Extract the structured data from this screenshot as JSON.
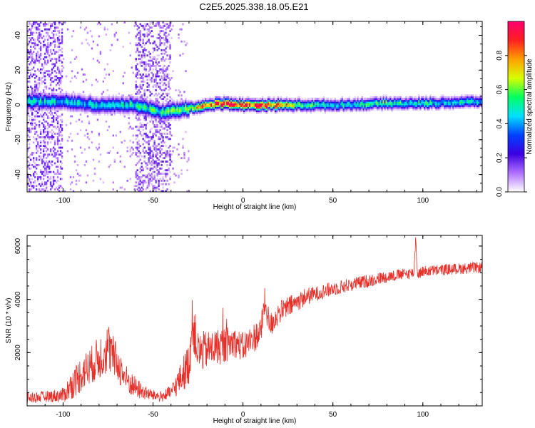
{
  "title": "C2E5.2025.338.18.05.E21",
  "chart_data": [
    {
      "type": "heatmap",
      "xlabel": "Height of straight line (km)",
      "ylabel": "Frequency (Hz)",
      "xlim": [
        -120,
        133
      ],
      "ylim": [
        -50,
        48
      ],
      "xticks": [
        -100,
        -50,
        0,
        50,
        100
      ],
      "yticks": [
        -40,
        -20,
        0,
        20,
        40
      ],
      "colorbar": {
        "label": "Normalized spectral amplitude",
        "ticks": [
          0.0,
          0.2,
          0.4,
          0.6,
          0.8
        ],
        "tick_labels": [
          "0.0",
          "0.2",
          "0.4",
          "0.6",
          "0.8"
        ],
        "range": [
          0,
          1
        ],
        "colors": [
          "#ffffff",
          "#b070ff",
          "#3c00e0",
          "#0040ff",
          "#00e0ff",
          "#00ff60",
          "#d8ff00",
          "#ffa000",
          "#ff2020",
          "#ff0070"
        ]
      },
      "ridge": {
        "description_points_x": [
          -120,
          -100,
          -80,
          -60,
          -45,
          -30,
          -20,
          -10,
          0,
          10,
          20,
          30,
          50,
          80,
          100,
          133
        ],
        "center_hz": [
          2,
          2,
          0,
          0,
          -4,
          -2,
          0,
          1,
          0,
          0,
          0,
          0,
          0,
          1,
          1,
          2
        ],
        "peak_amplitude": [
          0.5,
          0.45,
          0.45,
          0.5,
          0.55,
          0.6,
          0.9,
          0.9,
          0.9,
          0.9,
          0.85,
          0.6,
          0.45,
          0.55,
          0.5,
          0.45
        ]
      },
      "noise_bands_x": [
        [
          -120,
          -100
        ],
        [
          -60,
          -40
        ]
      ]
    },
    {
      "type": "line",
      "xlabel": "Height of straight line (km)",
      "ylabel": "SNR (10 * v/v)",
      "xlim": [
        -120,
        133
      ],
      "ylim": [
        0,
        6400
      ],
      "xticks": [
        -100,
        -50,
        0,
        50,
        100
      ],
      "yticks": [
        2000,
        4000,
        6000
      ],
      "series": [
        {
          "color": "#e8302a",
          "x": [
            -120,
            -110,
            -100,
            -95,
            -90,
            -85,
            -80,
            -75,
            -70,
            -65,
            -60,
            -55,
            -50,
            -45,
            -40,
            -35,
            -30,
            -28,
            -25,
            -20,
            -15,
            -10,
            -5,
            0,
            5,
            10,
            12,
            15,
            20,
            25,
            30,
            35,
            40,
            50,
            60,
            70,
            80,
            90,
            95,
            96,
            97,
            100,
            110,
            120,
            133
          ],
          "y": [
            300,
            350,
            400,
            800,
            1200,
            1500,
            1800,
            2200,
            1600,
            1000,
            700,
            500,
            400,
            350,
            500,
            1000,
            1600,
            3200,
            2000,
            2100,
            2200,
            2300,
            2400,
            2200,
            2500,
            2800,
            3900,
            3000,
            3500,
            3700,
            3900,
            4100,
            4200,
            4400,
            4550,
            4700,
            4850,
            4950,
            5000,
            6300,
            4950,
            5050,
            5100,
            5150,
            5200
          ],
          "noise": [
            150,
            150,
            200,
            400,
            500,
            500,
            600,
            700,
            500,
            400,
            300,
            200,
            150,
            150,
            200,
            400,
            600,
            700,
            600,
            500,
            500,
            500,
            400,
            400,
            400,
            400,
            400,
            350,
            300,
            300,
            250,
            250,
            200,
            200,
            180,
            180,
            160,
            150,
            150,
            150,
            150,
            150,
            150,
            150,
            150
          ]
        }
      ]
    }
  ]
}
